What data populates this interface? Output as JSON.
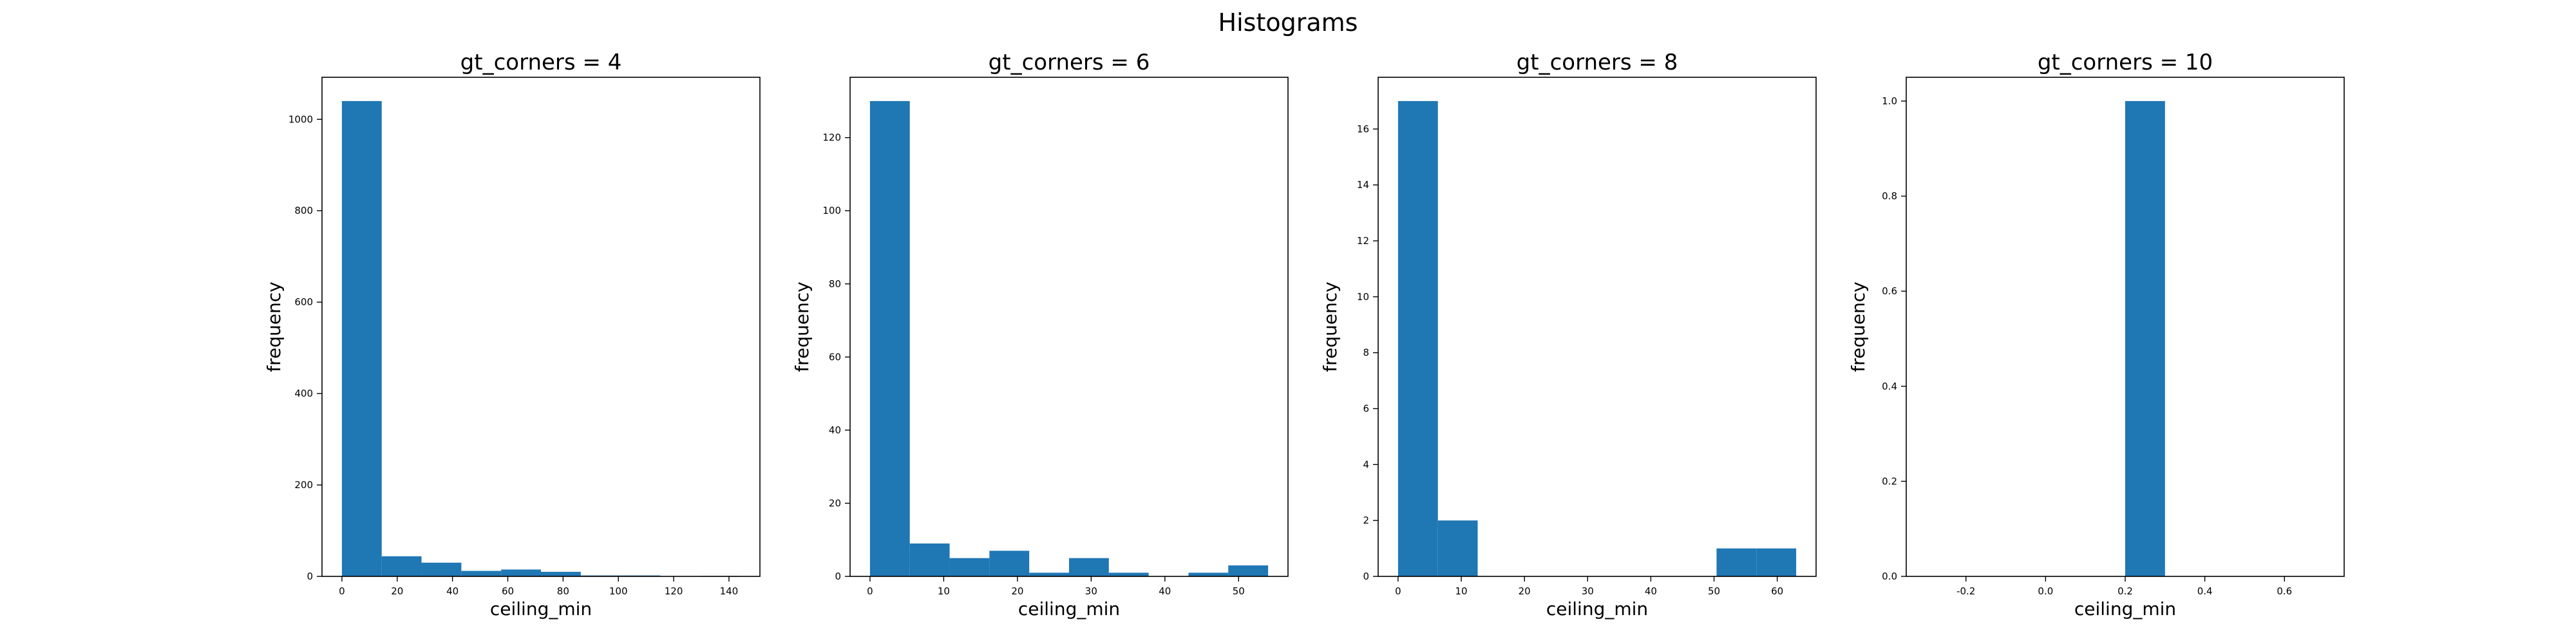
{
  "figure": {
    "title": "Histograms"
  },
  "chart_data": [
    {
      "type": "bar",
      "title": "gt_corners = 4",
      "xlabel": "ceiling_min",
      "ylabel": "frequency",
      "color": "#1f77b4",
      "bin_edges": [
        0,
        14.4,
        28.8,
        43.2,
        57.6,
        72,
        86.4,
        100.8,
        115.2,
        129.6,
        144
      ],
      "values": [
        1040,
        44,
        30,
        12,
        15,
        10,
        2,
        2,
        0,
        1
      ],
      "xlim": [
        -7.2,
        151.2
      ],
      "ylim": [
        0,
        1092
      ],
      "xticks": [
        0,
        20,
        40,
        60,
        80,
        100,
        120,
        140
      ],
      "yticks": [
        0,
        200,
        400,
        600,
        800,
        1000
      ]
    },
    {
      "type": "bar",
      "title": "gt_corners = 6",
      "xlabel": "ceiling_min",
      "ylabel": "frequency",
      "color": "#1f77b4",
      "bin_edges": [
        0,
        5.4,
        10.8,
        16.2,
        21.6,
        27,
        32.4,
        37.8,
        43.2,
        48.6,
        54
      ],
      "values": [
        130,
        9,
        5,
        7,
        1,
        5,
        1,
        0,
        1,
        3
      ],
      "xlim": [
        -2.7,
        56.7
      ],
      "ylim": [
        0,
        136.5
      ],
      "xticks": [
        0,
        10,
        20,
        30,
        40,
        50
      ],
      "yticks": [
        0,
        20,
        40,
        60,
        80,
        100,
        120
      ]
    },
    {
      "type": "bar",
      "title": "gt_corners = 8",
      "xlabel": "ceiling_min",
      "ylabel": "frequency",
      "color": "#1f77b4",
      "bin_edges": [
        0,
        6.3,
        12.6,
        18.9,
        25.2,
        31.5,
        37.8,
        44.1,
        50.4,
        56.7,
        63
      ],
      "values": [
        17,
        2,
        0,
        0,
        0,
        0,
        0,
        0,
        1,
        1
      ],
      "xlim": [
        -3.15,
        66.15
      ],
      "ylim": [
        0,
        17.85
      ],
      "xticks": [
        0,
        10,
        20,
        30,
        40,
        50,
        60
      ],
      "yticks": [
        0,
        2,
        4,
        6,
        8,
        10,
        12,
        14,
        16
      ]
    },
    {
      "type": "bar",
      "title": "gt_corners = 10",
      "xlabel": "ceiling_min",
      "ylabel": "frequency",
      "color": "#1f77b4",
      "bin_edges": [
        0.2,
        0.3
      ],
      "values": [
        1
      ],
      "xlim": [
        -0.35,
        0.75
      ],
      "ylim": [
        0,
        1.05
      ],
      "xticks": [
        -0.2,
        0.0,
        0.2,
        0.4,
        0.6
      ],
      "yticks": [
        0.0,
        0.2,
        0.4,
        0.6,
        0.8,
        1.0
      ]
    }
  ]
}
